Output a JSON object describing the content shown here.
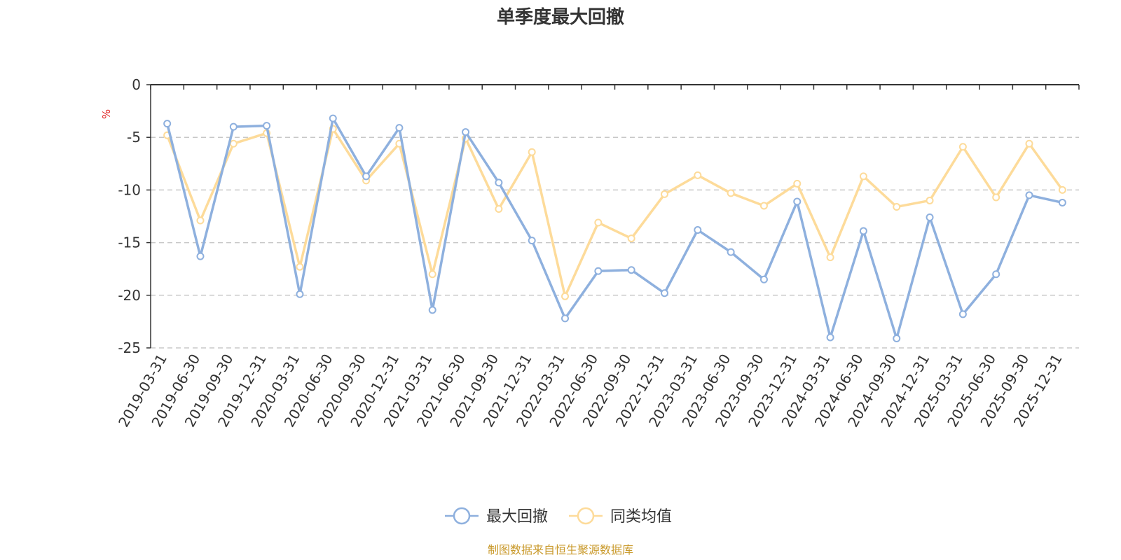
{
  "chart_data": {
    "type": "line",
    "title": "单季度最大回撤",
    "ylabel": "%",
    "ylim": [
      -25,
      0
    ],
    "yticks": [
      0,
      -5,
      -10,
      -15,
      -20,
      -25
    ],
    "grid": true,
    "legend_position": "bottom",
    "x": [
      "2019-03-31",
      "2019-06-30",
      "2019-09-30",
      "2019-12-31",
      "2020-03-31",
      "2020-06-30",
      "2020-09-30",
      "2020-12-31",
      "2021-03-31",
      "2021-06-30",
      "2021-09-30",
      "2021-12-31",
      "2022-03-31",
      "2022-06-30",
      "2022-09-30",
      "2022-12-31",
      "2023-03-31",
      "2023-06-30",
      "2023-09-30",
      "2023-12-31",
      "2024-03-31",
      "2024-06-30",
      "2024-09-30",
      "2024-12-31",
      "2025-03-31",
      "2025-06-30",
      "2025-09-30",
      "2025-12-31"
    ],
    "series": [
      {
        "name": "最大回撤",
        "color": "#8eb0de",
        "values": [
          -3.7,
          -16.3,
          -4.0,
          -3.9,
          -19.9,
          -3.2,
          -8.7,
          -4.1,
          -21.4,
          -4.5,
          -9.3,
          -14.8,
          -22.2,
          -17.7,
          -17.6,
          -19.8,
          -13.8,
          -15.9,
          -18.5,
          -11.1,
          -24.0,
          -13.9,
          -24.1,
          -12.6,
          -21.8,
          -18.0,
          -10.5,
          -11.2
        ]
      },
      {
        "name": "同类均值",
        "color": "#fddb9a",
        "values": [
          -4.8,
          -12.9,
          -5.6,
          -4.6,
          -17.3,
          -4.2,
          -9.1,
          -5.6,
          -18.0,
          -5.1,
          -11.8,
          -6.4,
          -20.1,
          -13.1,
          -14.6,
          -10.4,
          -8.6,
          -10.3,
          -11.5,
          -9.4,
          -16.4,
          -8.7,
          -11.6,
          -11.0,
          -5.9,
          -10.7,
          -5.6,
          -10.0
        ]
      }
    ],
    "source_note": "制图数据来自恒生聚源数据库"
  }
}
